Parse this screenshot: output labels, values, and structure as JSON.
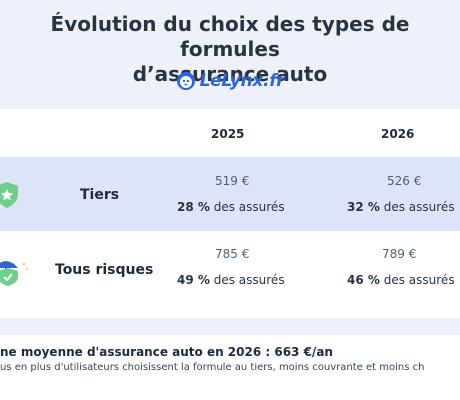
{
  "header": {
    "title_line1": "Évolution du choix des types de formules",
    "title_line2": "d’assurance auto",
    "brand": "LeLynx.fr",
    "brand_icon": "lynx-logo-icon",
    "brand_color": "#2f66d6"
  },
  "table": {
    "years": [
      "2025",
      "2026"
    ],
    "rows": [
      {
        "label": "Tiers",
        "icon": "shield-star-icon",
        "cells": [
          {
            "price": "519 €",
            "pct": "28 %",
            "suffix": "des assurés"
          },
          {
            "price": "526 €",
            "pct": "32 %",
            "suffix": "des assurés"
          }
        ]
      },
      {
        "label": "Tous risques",
        "icon": "umbrella-shield-icon",
        "cells": [
          {
            "price": "785 €",
            "pct": "49 %",
            "suffix": "des assurés"
          },
          {
            "price": "789 €",
            "pct": "46 %",
            "suffix": "des assurés"
          }
        ]
      }
    ]
  },
  "footer": {
    "main": "ne moyenne d'assurance auto en 2026 : 663 €/an",
    "sub": "us en plus d'utilisateurs choisissent la formule au tiers, moins couvrante et moins ch"
  }
}
